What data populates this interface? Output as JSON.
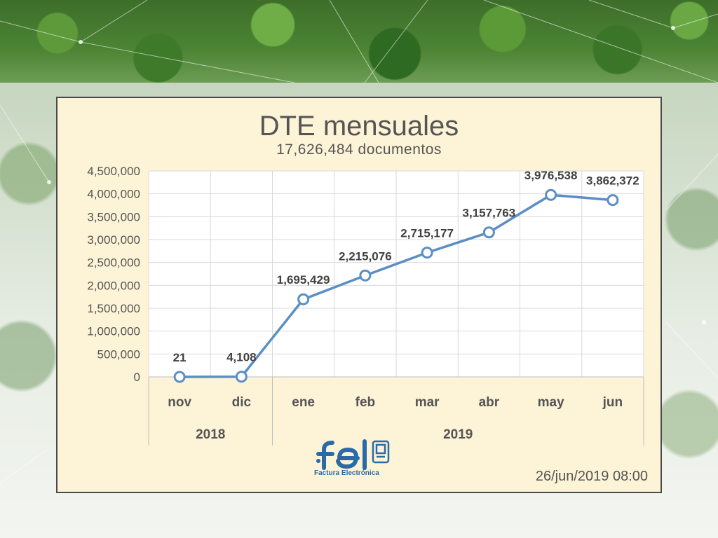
{
  "slide": {
    "timestamp": "26/jun/2019 08:00",
    "logo_caption": "Factura Electrónica"
  },
  "colors": {
    "line": "#5b8ec4",
    "chart_bg": "#fdf3d6",
    "plot_bg": "#ffffff"
  },
  "chart_data": {
    "type": "line",
    "title": "DTE mensuales",
    "subtitle": "17,626,484 documentos",
    "categories": [
      "nov",
      "dic",
      "ene",
      "feb",
      "mar",
      "abr",
      "may",
      "jun"
    ],
    "groups": [
      {
        "label": "2018",
        "span": 2
      },
      {
        "label": "2019",
        "span": 6
      }
    ],
    "series": [
      {
        "values": [
          21,
          4108,
          1695429,
          2215076,
          2715177,
          3157763,
          3976538,
          3862372
        ],
        "labels": [
          "21",
          "4,108",
          "1,695,429",
          "2,215,076",
          "2,715,177",
          "3,157,763",
          "3,976,538",
          "3,862,372"
        ]
      }
    ],
    "yticks": [
      0,
      500000,
      1000000,
      1500000,
      2000000,
      2500000,
      3000000,
      3500000,
      4000000,
      4500000
    ],
    "ytick_labels": [
      "0",
      "500,000",
      "1,000,000",
      "1,500,000",
      "2,000,000",
      "2,500,000",
      "3,000,000",
      "3,500,000",
      "4,000,000",
      "4,500,000"
    ],
    "ylim": [
      0,
      4500000
    ],
    "grid": true,
    "legend": "none"
  }
}
